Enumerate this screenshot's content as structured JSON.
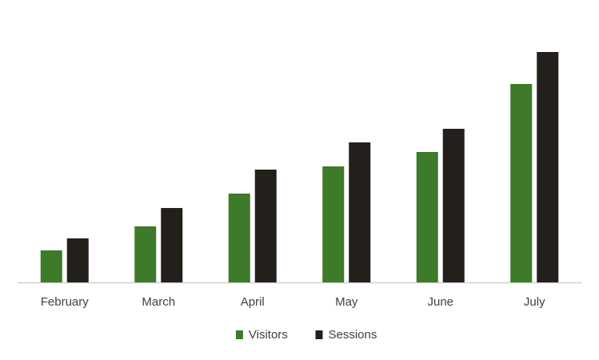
{
  "chart_data": {
    "type": "bar",
    "categories": [
      "February",
      "March",
      "April",
      "May",
      "June",
      "July"
    ],
    "series": [
      {
        "name": "Visitors",
        "color": "#3d7a29",
        "values": [
          40,
          70,
          111,
          145,
          163,
          248
        ]
      },
      {
        "name": "Sessions",
        "color": "#231f1b",
        "values": [
          55,
          93,
          141,
          175,
          192,
          288
        ]
      }
    ],
    "legend": "bottom"
  }
}
